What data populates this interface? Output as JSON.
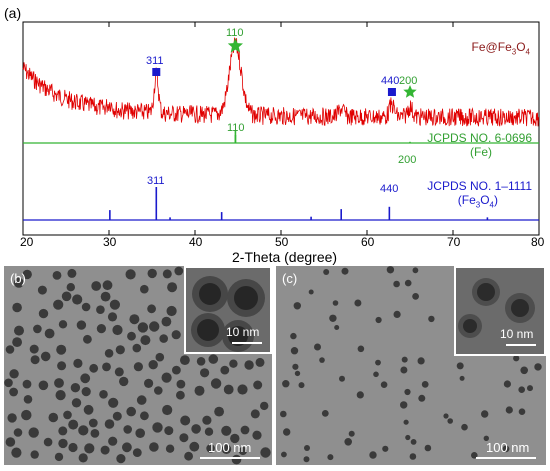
{
  "panel_a": {
    "label": "(a)",
    "xlabel": "2-Theta (degree)",
    "sample": {
      "name": "Fe@Fe",
      "sub": "3",
      "name2": "O",
      "sub2": "4"
    },
    "fe_ref": {
      "line1": "JCPDS NO. 6-0696",
      "line2": "(Fe)"
    },
    "fe3o4_ref": {
      "line1": "JCPDS NO. 1–1111",
      "line2": "(Fe",
      "sub": "3",
      "line2b": "O",
      "sub2": "4",
      "close": ")"
    },
    "markers": {
      "m311": "311",
      "m110": "110",
      "m440": "440",
      "m200": "200"
    },
    "ref_labels": {
      "fe110": "110",
      "fe200": "200",
      "fo311": "311",
      "fo440": "440"
    },
    "colors": {
      "sample": "#e00000",
      "fe": "#33b533",
      "fe3o4": "#1a1acc",
      "square": "#1a1acc",
      "star": "#33b533"
    }
  },
  "chart_data": {
    "type": "line",
    "xlabel": "2-Theta (degree)",
    "xlim": [
      20,
      80
    ],
    "xticks": [
      20,
      30,
      40,
      50,
      60,
      70,
      80
    ],
    "series": [
      {
        "name": "Fe@Fe3O4",
        "peaks": [
          {
            "x": 35.5,
            "hkl": "311",
            "phase": "Fe3O4"
          },
          {
            "x": 44.7,
            "hkl": "110",
            "phase": "Fe"
          },
          {
            "x": 62.9,
            "hkl": "440",
            "phase": "Fe3O4"
          },
          {
            "x": 65.0,
            "hkl": "200",
            "phase": "Fe"
          }
        ]
      },
      {
        "name": "JCPDS NO. 6-0696 (Fe)",
        "sticks": [
          {
            "x": 44.7,
            "h": 1.0
          },
          {
            "x": 65.0,
            "h": 0.15
          }
        ]
      },
      {
        "name": "JCPDS NO. 1-1111 (Fe3O4)",
        "sticks": [
          {
            "x": 30.1,
            "h": 0.3
          },
          {
            "x": 35.5,
            "h": 1.0
          },
          {
            "x": 37.1,
            "h": 0.08
          },
          {
            "x": 43.1,
            "h": 0.24
          },
          {
            "x": 53.5,
            "h": 0.1
          },
          {
            "x": 57.0,
            "h": 0.33
          },
          {
            "x": 62.6,
            "h": 0.4
          },
          {
            "x": 74.0,
            "h": 0.08
          }
        ]
      }
    ]
  },
  "panel_b": {
    "label": "(b)",
    "scale": "100 nm",
    "inset_scale": "10 nm"
  },
  "panel_c": {
    "label": "(c)",
    "scale": "100 nm",
    "inset_scale": "10 nm"
  }
}
